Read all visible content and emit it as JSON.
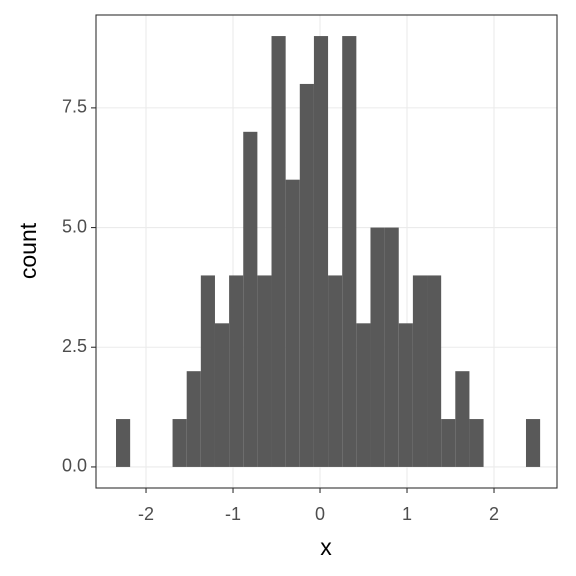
{
  "chart_data": {
    "type": "histogram",
    "x_label": "x",
    "y_label": "count",
    "color": "#595959",
    "bins": [
      -2.345,
      -2.1825,
      -2.02,
      -1.8575,
      -1.695,
      -1.5325,
      -1.37,
      -1.2075,
      -1.045,
      -0.8825,
      -0.72,
      -0.5575,
      -0.395,
      -0.2325,
      -0.07,
      0.0925,
      0.255,
      0.4175,
      0.58,
      0.7425,
      0.905,
      1.0675,
      1.23,
      1.3925,
      1.555,
      1.7175,
      1.88,
      2.0425,
      2.205,
      2.3675,
      2.53
    ],
    "values": [
      1,
      0,
      0,
      0,
      1,
      2,
      4,
      3,
      4,
      7,
      4,
      9,
      6,
      8,
      9,
      4,
      9,
      3,
      5,
      5,
      3,
      4,
      4,
      1,
      2,
      1,
      0,
      0,
      0,
      1
    ],
    "xlim": [
      -2.575,
      2.724
    ],
    "ylim": [
      -0.44,
      9.44
    ],
    "xticks": [
      -2,
      -1,
      0,
      1,
      2
    ],
    "yticks": [
      {
        "value": 0,
        "label": "0.0"
      },
      {
        "value": 2.5,
        "label": "2.5"
      },
      {
        "value": 5,
        "label": "5.0"
      },
      {
        "value": 7.5,
        "label": "7.5"
      }
    ],
    "grid": true
  }
}
